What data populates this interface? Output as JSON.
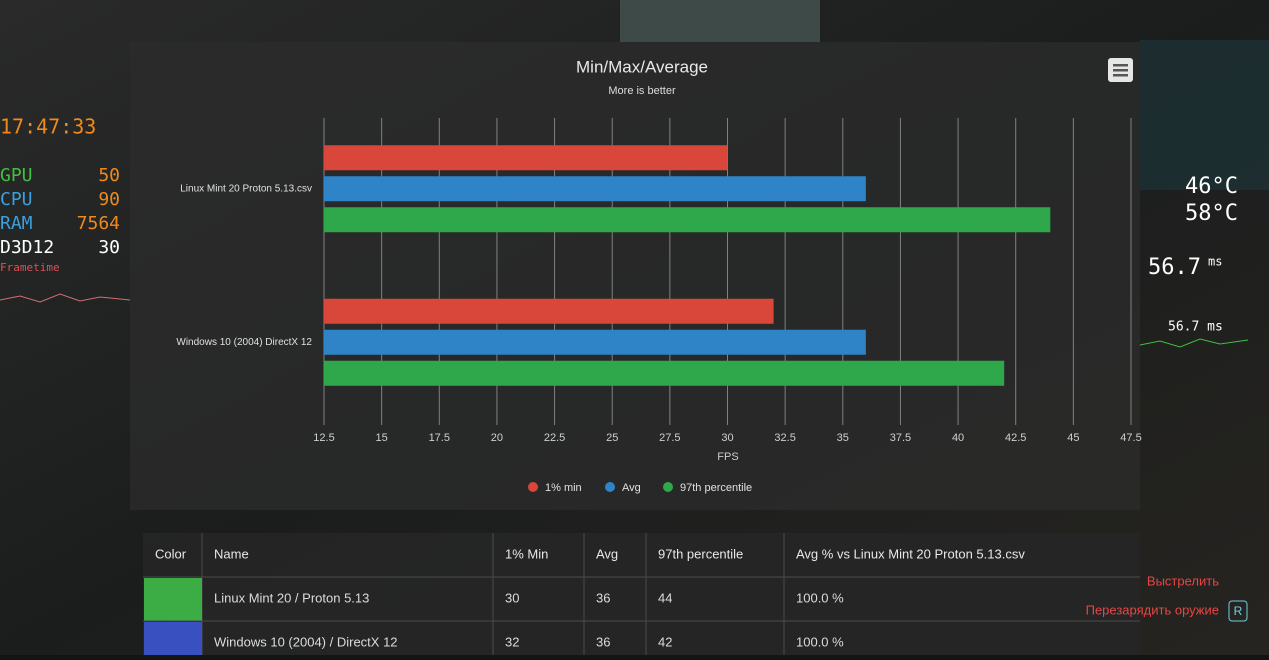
{
  "chart_data": {
    "type": "hbar",
    "title": "Min/Max/Average",
    "subtitle": "More is better",
    "x_label": "FPS",
    "categories": [
      "Linux Mint 20 Proton 5.13.csv",
      "Windows 10 (2004) DirectX 12"
    ],
    "series": [
      {
        "name": "1% min",
        "color": "#d9473b",
        "values": [
          30,
          32
        ]
      },
      {
        "name": "Avg",
        "color": "#2f84c8",
        "values": [
          36,
          36
        ]
      },
      {
        "name": "97th percentile",
        "color": "#2ea84a",
        "values": [
          44,
          42
        ]
      }
    ],
    "xlim": [
      12.5,
      47.5
    ],
    "xticks": [
      12.5,
      15,
      17.5,
      20,
      22.5,
      25,
      27.5,
      30,
      32.5,
      35,
      37.5,
      40,
      42.5,
      45,
      47.5
    ],
    "grid": true,
    "legend": "bottom"
  },
  "table": {
    "headers": [
      "Color",
      "Name",
      "1% Min",
      "Avg",
      "97th percentile",
      "Avg % vs Linux Mint 20 Proton 5.13.csv"
    ],
    "rows": [
      {
        "color": "#3cad45",
        "cells": [
          "Linux Mint 20 / Proton 5.13",
          30,
          36,
          44,
          "100.0 %"
        ]
      },
      {
        "color": "#3850c0",
        "cells": [
          "Windows 10 (2004) / DirectX 12",
          32,
          36,
          42,
          "100.0 %"
        ]
      }
    ]
  },
  "hud": {
    "clock": "17:47:33",
    "stats": [
      {
        "label": "GPU",
        "value": "50"
      },
      {
        "label": "CPU",
        "value": "90"
      },
      {
        "label": "RAM",
        "value": "7564"
      },
      {
        "label": "D3D12",
        "value": "30"
      }
    ],
    "frametime": "Frametime",
    "temps": [
      "46°C",
      "58°C"
    ],
    "frame_ms": "56.7",
    "frame_unit": "ms",
    "frame_small": "56.7 ms",
    "actions": [
      "Выстрелить",
      "Перезарядить оружие"
    ],
    "key": "R"
  }
}
